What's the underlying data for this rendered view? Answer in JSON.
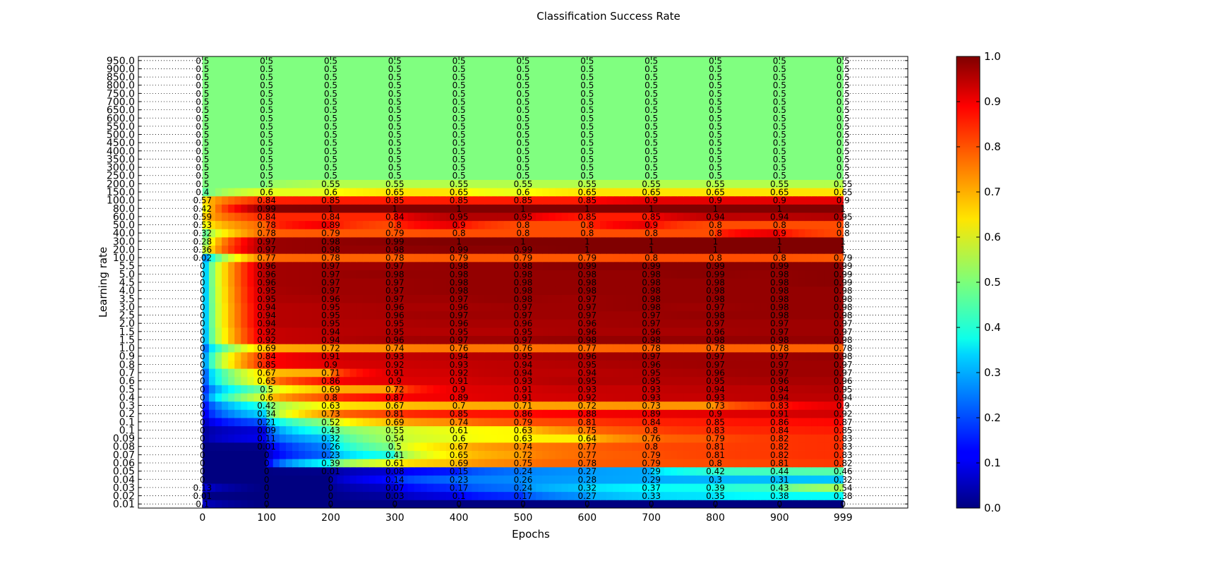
{
  "chart_data": {
    "type": "heatmap",
    "title": "Classification Success Rate",
    "xlabel": "Epochs",
    "ylabel": "Learning rate",
    "xlim": [
      -100,
      1100
    ],
    "x_ticks": [
      0,
      100,
      200,
      300,
      400,
      500,
      600,
      700,
      800,
      900,
      999
    ],
    "x_tick_labels": [
      "0",
      "100",
      "200",
      "300",
      "400",
      "500",
      "600",
      "700",
      "800",
      "900",
      "999"
    ],
    "rows": [
      {
        "label": "0.01",
        "values": [
          0.1,
          0.0,
          0.0,
          0.0,
          0.0,
          0.0,
          0.0,
          0.0,
          0.0,
          0.0,
          0.0
        ]
      },
      {
        "label": "0.02",
        "values": [
          0.01,
          0.0,
          0.0,
          0.03,
          0.1,
          0.17,
          0.27,
          0.33,
          0.35,
          0.38,
          0.38
        ]
      },
      {
        "label": "0.03",
        "values": [
          0.13,
          0.0,
          0.0,
          0.07,
          0.17,
          0.24,
          0.32,
          0.37,
          0.39,
          0.43,
          0.54
        ]
      },
      {
        "label": "0.04",
        "values": [
          0.0,
          0.0,
          0.0,
          0.14,
          0.23,
          0.26,
          0.28,
          0.29,
          0.3,
          0.31,
          0.32
        ]
      },
      {
        "label": "0.05",
        "values": [
          0.0,
          0.0,
          0.01,
          0.08,
          0.15,
          0.24,
          0.27,
          0.29,
          0.42,
          0.44,
          0.46
        ]
      },
      {
        "label": "0.06",
        "values": [
          0.0,
          0.0,
          0.39,
          0.61,
          0.69,
          0.75,
          0.78,
          0.79,
          0.8,
          0.81,
          0.82
        ]
      },
      {
        "label": "0.07",
        "values": [
          0.0,
          0.0,
          0.23,
          0.41,
          0.65,
          0.72,
          0.77,
          0.79,
          0.81,
          0.82,
          0.83
        ]
      },
      {
        "label": "0.08",
        "values": [
          0.0,
          0.01,
          0.26,
          0.5,
          0.67,
          0.74,
          0.77,
          0.8,
          0.81,
          0.82,
          0.83
        ]
      },
      {
        "label": "0.09",
        "values": [
          0.0,
          0.11,
          0.32,
          0.54,
          0.6,
          0.63,
          0.64,
          0.76,
          0.79,
          0.82,
          0.83
        ]
      },
      {
        "label": "0.1",
        "values": [
          0.0,
          0.09,
          0.43,
          0.55,
          0.61,
          0.63,
          0.75,
          0.8,
          0.83,
          0.84,
          0.85
        ]
      },
      {
        "label": "0.1",
        "values": [
          0.0,
          0.21,
          0.52,
          0.69,
          0.74,
          0.79,
          0.81,
          0.84,
          0.85,
          0.86,
          0.87
        ]
      },
      {
        "label": "0.2",
        "values": [
          0.0,
          0.34,
          0.73,
          0.81,
          0.85,
          0.86,
          0.88,
          0.89,
          0.9,
          0.91,
          0.92
        ]
      },
      {
        "label": "0.3",
        "values": [
          0.0,
          0.42,
          0.63,
          0.67,
          0.7,
          0.71,
          0.72,
          0.73,
          0.73,
          0.83,
          0.9
        ]
      },
      {
        "label": "0.4",
        "values": [
          0.0,
          0.6,
          0.8,
          0.87,
          0.89,
          0.91,
          0.92,
          0.93,
          0.93,
          0.94,
          0.94
        ]
      },
      {
        "label": "0.5",
        "values": [
          0.0,
          0.5,
          0.69,
          0.72,
          0.9,
          0.91,
          0.93,
          0.93,
          0.94,
          0.94,
          0.95
        ]
      },
      {
        "label": "0.6",
        "values": [
          0.0,
          0.65,
          0.86,
          0.9,
          0.91,
          0.93,
          0.95,
          0.95,
          0.95,
          0.96,
          0.96
        ]
      },
      {
        "label": "0.7",
        "values": [
          0.0,
          0.67,
          0.71,
          0.91,
          0.92,
          0.94,
          0.94,
          0.95,
          0.96,
          0.97,
          0.97
        ]
      },
      {
        "label": "0.8",
        "values": [
          0.0,
          0.85,
          0.9,
          0.92,
          0.93,
          0.94,
          0.95,
          0.96,
          0.97,
          0.97,
          0.97
        ]
      },
      {
        "label": "0.9",
        "values": [
          0.0,
          0.84,
          0.91,
          0.93,
          0.94,
          0.95,
          0.96,
          0.97,
          0.97,
          0.97,
          0.98
        ]
      },
      {
        "label": "1.0",
        "values": [
          0.0,
          0.69,
          0.72,
          0.74,
          0.76,
          0.76,
          0.77,
          0.78,
          0.78,
          0.78,
          0.78
        ]
      },
      {
        "label": "1.5",
        "values": [
          0.0,
          0.92,
          0.94,
          0.96,
          0.97,
          0.97,
          0.98,
          0.98,
          0.98,
          0.98,
          0.98
        ]
      },
      {
        "label": "1.5",
        "values": [
          0.0,
          0.92,
          0.94,
          0.95,
          0.95,
          0.95,
          0.96,
          0.96,
          0.96,
          0.97,
          0.97
        ]
      },
      {
        "label": "2.0",
        "values": [
          0.0,
          0.94,
          0.95,
          0.95,
          0.96,
          0.96,
          0.96,
          0.97,
          0.97,
          0.97,
          0.97
        ]
      },
      {
        "label": "2.5",
        "values": [
          0.0,
          0.94,
          0.95,
          0.96,
          0.97,
          0.97,
          0.97,
          0.97,
          0.98,
          0.98,
          0.98
        ]
      },
      {
        "label": "3.0",
        "values": [
          0.0,
          0.94,
          0.95,
          0.96,
          0.96,
          0.97,
          0.97,
          0.98,
          0.97,
          0.98,
          0.98
        ]
      },
      {
        "label": "3.5",
        "values": [
          0.0,
          0.95,
          0.96,
          0.97,
          0.97,
          0.98,
          0.97,
          0.98,
          0.98,
          0.98,
          0.98
        ]
      },
      {
        "label": "4.0",
        "values": [
          0.0,
          0.95,
          0.97,
          0.97,
          0.98,
          0.98,
          0.98,
          0.98,
          0.98,
          0.98,
          0.98
        ]
      },
      {
        "label": "4.5",
        "values": [
          0.0,
          0.96,
          0.97,
          0.97,
          0.98,
          0.98,
          0.98,
          0.98,
          0.98,
          0.98,
          0.99
        ]
      },
      {
        "label": "5.0",
        "values": [
          0.0,
          0.96,
          0.97,
          0.98,
          0.98,
          0.98,
          0.98,
          0.98,
          0.99,
          0.98,
          0.99
        ]
      },
      {
        "label": "5.5",
        "values": [
          0.0,
          0.96,
          0.97,
          0.97,
          0.98,
          0.98,
          0.99,
          0.99,
          0.99,
          0.99,
          0.99
        ]
      },
      {
        "label": "10.0",
        "values": [
          0.02,
          0.77,
          0.78,
          0.78,
          0.79,
          0.79,
          0.79,
          0.8,
          0.8,
          0.8,
          0.79
        ]
      },
      {
        "label": "20.0",
        "values": [
          0.36,
          0.97,
          0.98,
          0.98,
          0.99,
          0.99,
          1.0,
          1.0,
          1.0,
          1.0,
          1.0
        ]
      },
      {
        "label": "30.0",
        "values": [
          0.28,
          0.97,
          0.98,
          0.99,
          1.0,
          1.0,
          1.0,
          1.0,
          1.0,
          1.0,
          1.0
        ]
      },
      {
        "label": "40.0",
        "values": [
          0.32,
          0.78,
          0.79,
          0.79,
          0.8,
          0.8,
          0.8,
          0.8,
          0.8,
          0.9,
          0.8
        ]
      },
      {
        "label": "50.0",
        "values": [
          0.53,
          0.78,
          0.89,
          0.8,
          0.9,
          0.8,
          0.8,
          0.9,
          0.8,
          0.8,
          0.8
        ]
      },
      {
        "label": "60.0",
        "values": [
          0.59,
          0.84,
          0.84,
          0.84,
          0.95,
          0.95,
          0.85,
          0.85,
          0.94,
          0.94,
          0.95
        ]
      },
      {
        "label": "80.0",
        "values": [
          0.42,
          0.99,
          1.0,
          1.0,
          1.0,
          1.0,
          1.0,
          1.0,
          1.0,
          1.0,
          1.0
        ]
      },
      {
        "label": "100.0",
        "values": [
          0.57,
          0.84,
          0.85,
          0.85,
          0.85,
          0.85,
          0.85,
          0.9,
          0.9,
          0.9,
          0.9
        ]
      },
      {
        "label": "150.0",
        "values": [
          0.4,
          0.6,
          0.6,
          0.65,
          0.65,
          0.6,
          0.65,
          0.65,
          0.65,
          0.65,
          0.65
        ]
      },
      {
        "label": "200.0",
        "values": [
          0.5,
          0.5,
          0.55,
          0.55,
          0.55,
          0.55,
          0.55,
          0.55,
          0.55,
          0.55,
          0.55
        ]
      },
      {
        "label": "250.0",
        "values": [
          0.5,
          0.5,
          0.5,
          0.5,
          0.5,
          0.5,
          0.5,
          0.5,
          0.5,
          0.5,
          0.5
        ]
      },
      {
        "label": "300.0",
        "values": [
          0.5,
          0.5,
          0.5,
          0.5,
          0.5,
          0.5,
          0.5,
          0.5,
          0.5,
          0.5,
          0.5
        ]
      },
      {
        "label": "350.0",
        "values": [
          0.5,
          0.5,
          0.5,
          0.5,
          0.5,
          0.5,
          0.5,
          0.5,
          0.5,
          0.5,
          0.5
        ]
      },
      {
        "label": "400.0",
        "values": [
          0.5,
          0.5,
          0.5,
          0.5,
          0.5,
          0.5,
          0.5,
          0.5,
          0.5,
          0.5,
          0.5
        ]
      },
      {
        "label": "450.0",
        "values": [
          0.5,
          0.5,
          0.5,
          0.5,
          0.5,
          0.5,
          0.5,
          0.5,
          0.5,
          0.5,
          0.5
        ]
      },
      {
        "label": "500.0",
        "values": [
          0.5,
          0.5,
          0.5,
          0.5,
          0.5,
          0.5,
          0.5,
          0.5,
          0.5,
          0.5,
          0.5
        ]
      },
      {
        "label": "550.0",
        "values": [
          0.5,
          0.5,
          0.5,
          0.5,
          0.5,
          0.5,
          0.5,
          0.5,
          0.5,
          0.5,
          0.5
        ]
      },
      {
        "label": "600.0",
        "values": [
          0.5,
          0.5,
          0.5,
          0.5,
          0.5,
          0.5,
          0.5,
          0.5,
          0.5,
          0.5,
          0.5
        ]
      },
      {
        "label": "650.0",
        "values": [
          0.5,
          0.5,
          0.5,
          0.5,
          0.5,
          0.5,
          0.5,
          0.5,
          0.5,
          0.5,
          0.5
        ]
      },
      {
        "label": "700.0",
        "values": [
          0.5,
          0.5,
          0.5,
          0.5,
          0.5,
          0.5,
          0.5,
          0.5,
          0.5,
          0.5,
          0.5
        ]
      },
      {
        "label": "750.0",
        "values": [
          0.5,
          0.5,
          0.5,
          0.5,
          0.5,
          0.5,
          0.5,
          0.5,
          0.5,
          0.5,
          0.5
        ]
      },
      {
        "label": "800.0",
        "values": [
          0.5,
          0.5,
          0.5,
          0.5,
          0.5,
          0.5,
          0.5,
          0.5,
          0.5,
          0.5,
          0.5
        ]
      },
      {
        "label": "850.0",
        "values": [
          0.5,
          0.5,
          0.5,
          0.5,
          0.5,
          0.5,
          0.5,
          0.5,
          0.5,
          0.5,
          0.5
        ]
      },
      {
        "label": "900.0",
        "values": [
          0.5,
          0.5,
          0.5,
          0.5,
          0.5,
          0.5,
          0.5,
          0.5,
          0.5,
          0.5,
          0.5
        ]
      },
      {
        "label": "950.0",
        "values": [
          0.5,
          0.5,
          0.5,
          0.5,
          0.5,
          0.5,
          0.5,
          0.5,
          0.5,
          0.5,
          0.5
        ]
      }
    ],
    "colorbar": {
      "colormap": "jet",
      "range": [
        0.0,
        1.0
      ],
      "ticks": [
        0.0,
        0.1,
        0.2,
        0.3,
        0.4,
        0.5,
        0.6,
        0.7,
        0.8,
        0.9,
        1.0
      ],
      "tick_labels": [
        "0.0",
        "0.1",
        "0.2",
        "0.3",
        "0.4",
        "0.5",
        "0.6",
        "0.7",
        "0.8",
        "0.9",
        "1.0"
      ],
      "placement": "right"
    },
    "grid": "horizontal dotted"
  }
}
